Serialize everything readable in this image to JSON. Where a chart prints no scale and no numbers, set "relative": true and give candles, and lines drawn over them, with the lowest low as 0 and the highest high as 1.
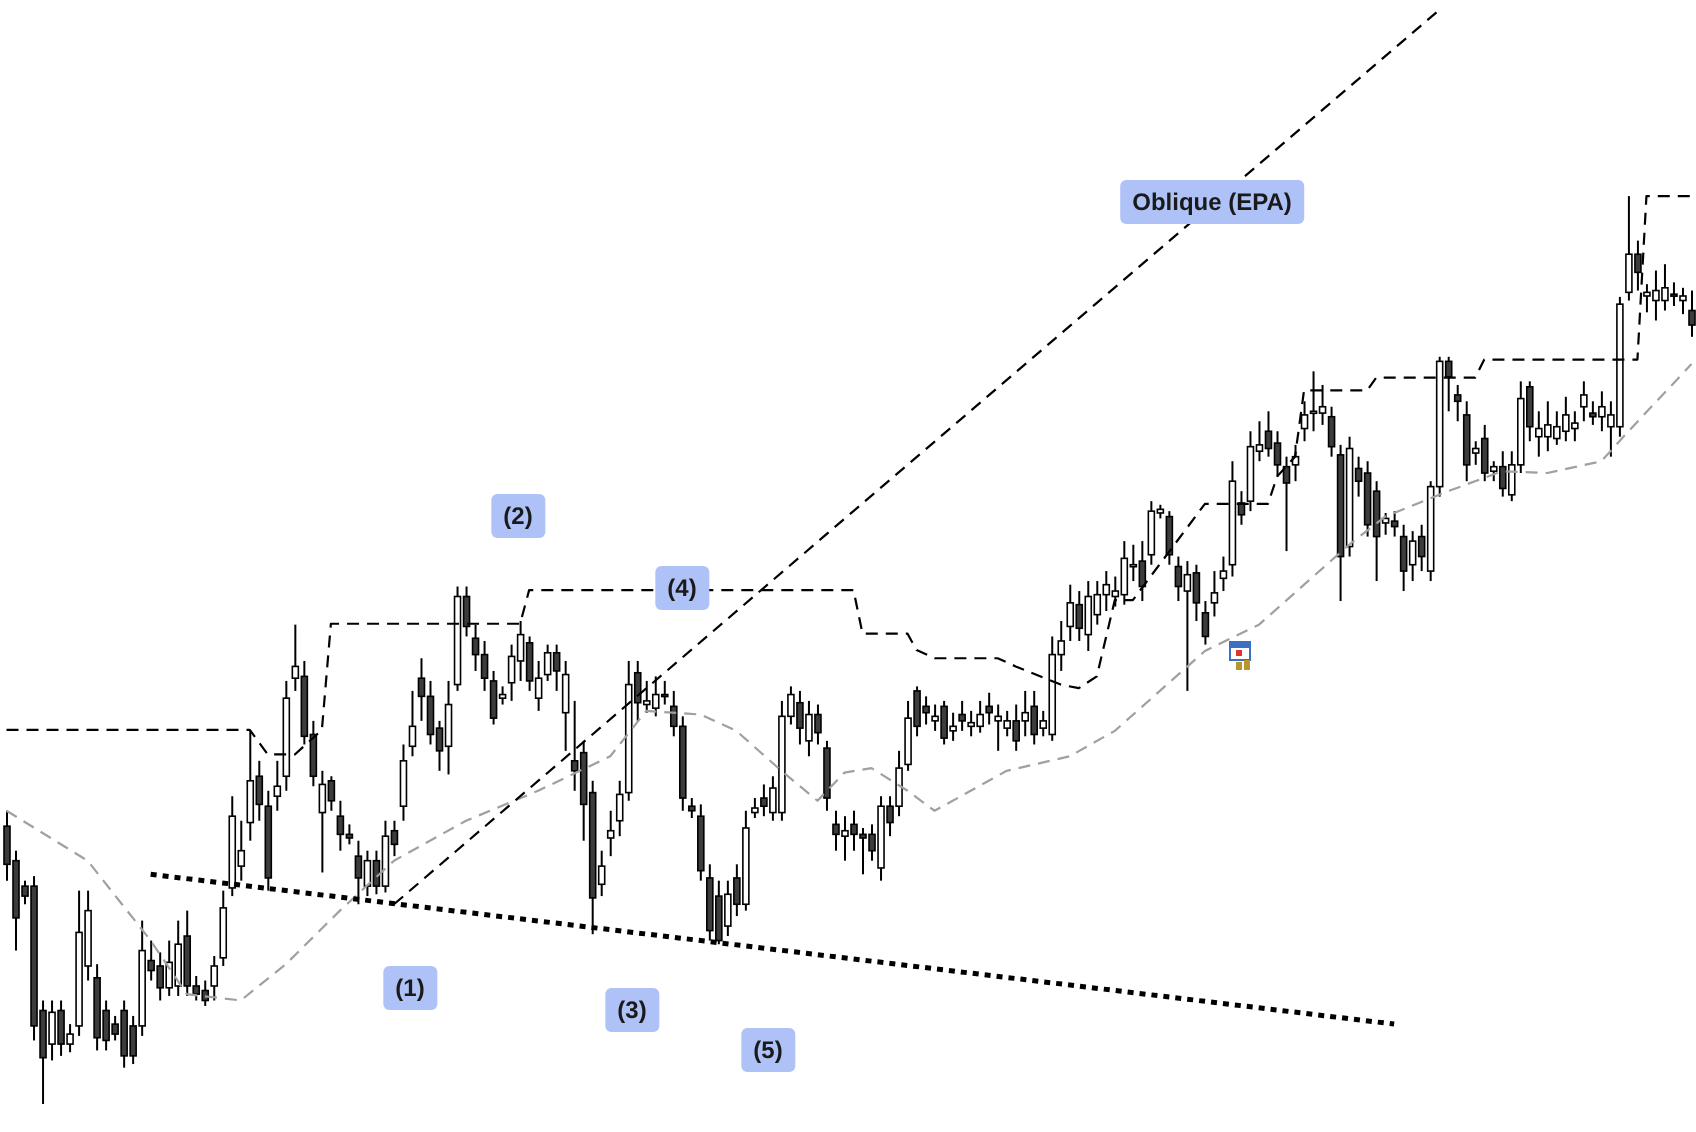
{
  "chart_data": {
    "type": "candlestick",
    "relative": true,
    "categories": [
      null,
      null,
      null,
      null,
      null,
      null,
      null,
      null,
      null,
      null,
      null,
      null,
      null,
      null,
      null,
      null,
      null,
      null,
      null,
      null,
      null,
      null,
      null,
      null,
      null,
      null,
      null,
      null,
      null,
      null,
      null,
      null,
      null,
      null,
      null,
      null,
      null,
      null,
      null,
      null,
      null,
      null,
      null,
      null,
      null,
      null,
      null,
      null,
      null,
      null,
      null,
      null,
      null,
      null,
      null,
      null,
      null,
      null,
      null,
      null,
      null,
      null,
      null,
      null,
      null,
      null,
      null,
      null,
      null,
      null,
      null,
      null,
      null,
      null,
      null,
      null,
      null,
      null,
      null,
      null,
      null,
      null,
      null,
      null,
      null,
      null,
      null,
      null,
      null,
      null,
      null,
      null,
      null,
      null,
      null,
      null,
      null,
      null,
      null,
      null,
      null,
      null,
      null,
      null,
      null,
      null,
      null,
      null,
      null,
      null,
      null,
      null,
      null,
      null,
      null,
      null,
      null,
      null,
      null,
      null,
      null,
      null,
      null,
      null,
      null,
      null,
      null,
      null,
      null,
      null,
      null,
      null,
      null,
      null,
      null,
      null,
      null,
      null,
      null,
      null,
      null,
      null,
      null,
      null,
      null,
      null,
      null,
      null,
      null,
      null,
      null,
      null,
      null,
      null,
      null,
      null,
      null,
      null,
      null,
      null,
      null,
      null,
      null,
      null,
      null,
      null,
      null,
      null,
      null,
      null,
      null,
      null,
      null,
      null,
      null,
      null,
      null,
      null,
      null,
      null,
      null,
      null,
      null,
      null,
      null,
      null,
      null,
      null
    ],
    "ohlc": [
      [
        0.306,
        0.323,
        0.246,
        0.264
      ],
      [
        0.268,
        0.279,
        0.169,
        0.205
      ],
      [
        0.24,
        0.246,
        0.22,
        0.229
      ],
      [
        0.24,
        0.251,
        0.07,
        0.086
      ],
      [
        0.103,
        0.114,
        0,
        0.051
      ],
      [
        0.066,
        0.114,
        0.048,
        0.101
      ],
      [
        0.103,
        0.114,
        0.053,
        0.066
      ],
      [
        0.066,
        0.088,
        0.057,
        0.077
      ],
      [
        0.086,
        0.235,
        0.075,
        0.189
      ],
      [
        0.152,
        0.235,
        0.136,
        0.213
      ],
      [
        0.139,
        0.154,
        0.059,
        0.073
      ],
      [
        0.103,
        0.114,
        0.059,
        0.07
      ],
      [
        0.088,
        0.097,
        0.07,
        0.077
      ],
      [
        0.103,
        0.114,
        0.04,
        0.053
      ],
      [
        0.086,
        0.097,
        0.044,
        0.053
      ],
      [
        0.086,
        0.202,
        0.075,
        0.169
      ],
      [
        0.158,
        0.18,
        0.136,
        0.147
      ],
      [
        0.152,
        0.167,
        0.114,
        0.128
      ],
      [
        0.128,
        0.18,
        0.119,
        0.156
      ],
      [
        0.13,
        0.202,
        0.119,
        0.176
      ],
      [
        0.185,
        0.213,
        0.119,
        0.13
      ],
      [
        0.13,
        0.141,
        0.114,
        0.121
      ],
      [
        0.125,
        0.136,
        0.108,
        0.114
      ],
      [
        0.13,
        0.163,
        0.114,
        0.152
      ],
      [
        0.161,
        0.235,
        0.152,
        0.216
      ],
      [
        0.238,
        0.339,
        0.229,
        0.317
      ],
      [
        0.262,
        0.312,
        0.246,
        0.279
      ],
      [
        0.31,
        0.411,
        0.29,
        0.356
      ],
      [
        0.361,
        0.378,
        0.312,
        0.33
      ],
      [
        0.328,
        0.345,
        0.235,
        0.249
      ],
      [
        0.339,
        0.378,
        0.323,
        0.35
      ],
      [
        0.361,
        0.466,
        0.345,
        0.447
      ],
      [
        0.469,
        0.528,
        0.455,
        0.482
      ],
      [
        0.471,
        0.488,
        0.396,
        0.405
      ],
      [
        0.407,
        0.422,
        0.35,
        0.361
      ],
      [
        0.321,
        0.367,
        0.255,
        0.352
      ],
      [
        0.356,
        0.361,
        0.323,
        0.334
      ],
      [
        0.317,
        0.334,
        0.279,
        0.297
      ],
      [
        0.297,
        0.308,
        0.286,
        0.293
      ],
      [
        0.273,
        0.29,
        0.22,
        0.249
      ],
      [
        0.24,
        0.279,
        0.229,
        0.268
      ],
      [
        0.268,
        0.279,
        0.231,
        0.24
      ],
      [
        0.24,
        0.312,
        0.233,
        0.295
      ],
      [
        0.301,
        0.312,
        0.273,
        0.286
      ],
      [
        0.328,
        0.396,
        0.312,
        0.378
      ],
      [
        0.394,
        0.455,
        0.383,
        0.416
      ],
      [
        0.469,
        0.491,
        0.422,
        0.449
      ],
      [
        0.449,
        0.466,
        0.396,
        0.407
      ],
      [
        0.414,
        0.422,
        0.367,
        0.389
      ],
      [
        0.394,
        0.466,
        0.363,
        0.44
      ],
      [
        0.462,
        0.57,
        0.455,
        0.559
      ],
      [
        0.559,
        0.57,
        0.515,
        0.526
      ],
      [
        0.513,
        0.528,
        0.477,
        0.495
      ],
      [
        0.495,
        0.51,
        0.455,
        0.469
      ],
      [
        0.466,
        0.477,
        0.418,
        0.425
      ],
      [
        0.447,
        0.46,
        0.44,
        0.451
      ],
      [
        0.464,
        0.506,
        0.444,
        0.493
      ],
      [
        0.488,
        0.532,
        0.466,
        0.517
      ],
      [
        0.508,
        0.515,
        0.455,
        0.466
      ],
      [
        0.447,
        0.488,
        0.433,
        0.469
      ],
      [
        0.473,
        0.506,
        0.466,
        0.497
      ],
      [
        0.497,
        0.506,
        0.455,
        0.477
      ],
      [
        0.431,
        0.488,
        0.389,
        0.473
      ],
      [
        0.378,
        0.444,
        0.345,
        0.367
      ],
      [
        0.387,
        0.4,
        0.29,
        0.33
      ],
      [
        0.343,
        0.356,
        0.187,
        0.227
      ],
      [
        0.242,
        0.279,
        0.229,
        0.262
      ],
      [
        0.293,
        0.323,
        0.273,
        0.301
      ],
      [
        0.312,
        0.356,
        0.295,
        0.341
      ],
      [
        0.343,
        0.488,
        0.334,
        0.462
      ],
      [
        0.475,
        0.488,
        0.422,
        0.442
      ],
      [
        0.44,
        0.466,
        0.431,
        0.444
      ],
      [
        0.436,
        0.471,
        0.427,
        0.451
      ],
      [
        0.451,
        0.466,
        0.44,
        0.449
      ],
      [
        0.438,
        0.455,
        0.405,
        0.416
      ],
      [
        0.416,
        0.427,
        0.323,
        0.337
      ],
      [
        0.328,
        0.337,
        0.315,
        0.323
      ],
      [
        0.317,
        0.33,
        0.246,
        0.257
      ],
      [
        0.249,
        0.264,
        0.18,
        0.191
      ],
      [
        0.229,
        0.246,
        0.176,
        0.18
      ],
      [
        0.196,
        0.246,
        0.185,
        0.231
      ],
      [
        0.249,
        0.264,
        0.207,
        0.22
      ],
      [
        0.22,
        0.323,
        0.213,
        0.304
      ],
      [
        0.321,
        0.337,
        0.315,
        0.326
      ],
      [
        0.337,
        0.352,
        0.317,
        0.328
      ],
      [
        0.321,
        0.361,
        0.312,
        0.348
      ],
      [
        0.321,
        0.444,
        0.312,
        0.427
      ],
      [
        0.427,
        0.46,
        0.418,
        0.451
      ],
      [
        0.442,
        0.455,
        0.396,
        0.414
      ],
      [
        0.4,
        0.444,
        0.383,
        0.429
      ],
      [
        0.429,
        0.44,
        0.396,
        0.409
      ],
      [
        0.392,
        0.4,
        0.323,
        0.337
      ],
      [
        0.308,
        0.323,
        0.279,
        0.297
      ],
      [
        0.295,
        0.317,
        0.268,
        0.301
      ],
      [
        0.308,
        0.323,
        0.279,
        0.297
      ],
      [
        0.297,
        0.304,
        0.253,
        0.293
      ],
      [
        0.297,
        0.308,
        0.268,
        0.279
      ],
      [
        0.26,
        0.339,
        0.246,
        0.328
      ],
      [
        0.328,
        0.339,
        0.295,
        0.31
      ],
      [
        0.328,
        0.389,
        0.317,
        0.37
      ],
      [
        0.374,
        0.444,
        0.367,
        0.425
      ],
      [
        0.455,
        0.46,
        0.405,
        0.416
      ],
      [
        0.438,
        0.449,
        0.418,
        0.431
      ],
      [
        0.422,
        0.44,
        0.411,
        0.427
      ],
      [
        0.438,
        0.444,
        0.396,
        0.403
      ],
      [
        0.411,
        0.431,
        0.4,
        0.416
      ],
      [
        0.429,
        0.444,
        0.411,
        0.422
      ],
      [
        0.416,
        0.433,
        0.405,
        0.42
      ],
      [
        0.416,
        0.444,
        0.409,
        0.429
      ],
      [
        0.438,
        0.453,
        0.418,
        0.431
      ],
      [
        0.422,
        0.44,
        0.389,
        0.427
      ],
      [
        0.414,
        0.433,
        0.405,
        0.422
      ],
      [
        0.422,
        0.44,
        0.389,
        0.4
      ],
      [
        0.422,
        0.455,
        0.405,
        0.431
      ],
      [
        0.438,
        0.455,
        0.396,
        0.407
      ],
      [
        0.414,
        0.433,
        0.405,
        0.422
      ],
      [
        0.407,
        0.515,
        0.4,
        0.495
      ],
      [
        0.495,
        0.532,
        0.477,
        0.51
      ],
      [
        0.526,
        0.572,
        0.51,
        0.552
      ],
      [
        0.55,
        0.565,
        0.51,
        0.524
      ],
      [
        0.517,
        0.576,
        0.499,
        0.559
      ],
      [
        0.539,
        0.576,
        0.528,
        0.561
      ],
      [
        0.561,
        0.587,
        0.543,
        0.572
      ],
      [
        0.559,
        0.581,
        0.548,
        0.565
      ],
      [
        0.561,
        0.62,
        0.55,
        0.601
      ],
      [
        0.592,
        0.616,
        0.576,
        0.594
      ],
      [
        0.598,
        0.62,
        0.554,
        0.57
      ],
      [
        0.605,
        0.664,
        0.594,
        0.653
      ],
      [
        0.651,
        0.66,
        0.645,
        0.655
      ],
      [
        0.647,
        0.653,
        0.594,
        0.605
      ],
      [
        0.592,
        0.603,
        0.554,
        0.57
      ],
      [
        0.565,
        0.598,
        0.455,
        0.583
      ],
      [
        0.585,
        0.594,
        0.532,
        0.552
      ],
      [
        0.541,
        0.554,
        0.506,
        0.515
      ],
      [
        0.552,
        0.587,
        0.537,
        0.563
      ],
      [
        0.579,
        0.603,
        0.565,
        0.587
      ],
      [
        0.594,
        0.708,
        0.581,
        0.686
      ],
      [
        0.662,
        0.675,
        0.638,
        0.649
      ],
      [
        0.664,
        0.741,
        0.653,
        0.724
      ],
      [
        0.719,
        0.752,
        0.708,
        0.726
      ],
      [
        0.741,
        0.763,
        0.713,
        0.722
      ],
      [
        0.728,
        0.741,
        0.691,
        0.704
      ],
      [
        0.702,
        0.713,
        0.609,
        0.684
      ],
      [
        0.704,
        0.726,
        0.686,
        0.713
      ],
      [
        0.744,
        0.774,
        0.73,
        0.759
      ],
      [
        0.761,
        0.807,
        0.741,
        0.763
      ],
      [
        0.761,
        0.792,
        0.748,
        0.768
      ],
      [
        0.757,
        0.768,
        0.713,
        0.724
      ],
      [
        0.715,
        0.726,
        0.554,
        0.603
      ],
      [
        0.614,
        0.735,
        0.603,
        0.722
      ],
      [
        0.7,
        0.713,
        0.669,
        0.686
      ],
      [
        0.695,
        0.708,
        0.625,
        0.638
      ],
      [
        0.675,
        0.686,
        0.576,
        0.625
      ],
      [
        0.64,
        0.651,
        0.627,
        0.645
      ],
      [
        0.642,
        0.653,
        0.625,
        0.636
      ],
      [
        0.625,
        0.638,
        0.565,
        0.587
      ],
      [
        0.594,
        0.631,
        0.576,
        0.62
      ],
      [
        0.625,
        0.638,
        0.587,
        0.603
      ],
      [
        0.587,
        0.686,
        0.576,
        0.68
      ],
      [
        0.68,
        0.823,
        0.669,
        0.818
      ],
      [
        0.818,
        0.823,
        0.763,
        0.801
      ],
      [
        0.781,
        0.792,
        0.752,
        0.774
      ],
      [
        0.759,
        0.774,
        0.686,
        0.704
      ],
      [
        0.717,
        0.73,
        0.704,
        0.722
      ],
      [
        0.733,
        0.748,
        0.686,
        0.695
      ],
      [
        0.697,
        0.708,
        0.686,
        0.702
      ],
      [
        0.702,
        0.719,
        0.669,
        0.678
      ],
      [
        0.671,
        0.719,
        0.664,
        0.704
      ],
      [
        0.704,
        0.796,
        0.695,
        0.777
      ],
      [
        0.79,
        0.796,
        0.73,
        0.746
      ],
      [
        0.735,
        0.763,
        0.713,
        0.744
      ],
      [
        0.735,
        0.774,
        0.719,
        0.748
      ],
      [
        0.733,
        0.763,
        0.726,
        0.746
      ],
      [
        0.741,
        0.779,
        0.73,
        0.759
      ],
      [
        0.744,
        0.763,
        0.73,
        0.75
      ],
      [
        0.768,
        0.796,
        0.752,
        0.781
      ],
      [
        0.761,
        0.774,
        0.748,
        0.757
      ],
      [
        0.757,
        0.785,
        0.741,
        0.768
      ],
      [
        0.746,
        0.774,
        0.713,
        0.759
      ],
      [
        0.746,
        0.889,
        0.735,
        0.881
      ],
      [
        0.894,
        1,
        0.885,
        0.936
      ],
      [
        0.936,
        0.951,
        0.896,
        0.916
      ],
      [
        0.89,
        0.903,
        0.872,
        0.894
      ],
      [
        0.885,
        0.918,
        0.863,
        0.896
      ],
      [
        0.885,
        0.925,
        0.874,
        0.899
      ],
      [
        0.892,
        0.905,
        0.879,
        0.89
      ],
      [
        0.885,
        0.899,
        0.87,
        0.89
      ],
      [
        0.874,
        0.896,
        0.845,
        0.858
      ]
    ],
    "series": [
      {
        "type": "line",
        "color": "#000000",
        "line_style": "dashed",
        "values": [
          0.412,
          null,
          null,
          null,
          null,
          null,
          null,
          null,
          null,
          null,
          null,
          null,
          null,
          null,
          null,
          null,
          null,
          null,
          null,
          null,
          null,
          null,
          null,
          null,
          null,
          null,
          null,
          0.412,
          null,
          0.385,
          null,
          null,
          0.385,
          null,
          null,
          0.412,
          0.529,
          null,
          null,
          null,
          null,
          null,
          null,
          null,
          null,
          null,
          null,
          null,
          null,
          null,
          null,
          null,
          null,
          null,
          null,
          null,
          null,
          0.529,
          0.566,
          null,
          null,
          null,
          null,
          null,
          null,
          null,
          null,
          null,
          null,
          null,
          null,
          null,
          null,
          null,
          null,
          null,
          null,
          null,
          null,
          null,
          null,
          null,
          null,
          null,
          null,
          null,
          null,
          null,
          null,
          null,
          null,
          null,
          null,
          null,
          0.566,
          0.518,
          null,
          null,
          null,
          null,
          0.518,
          0.5,
          null,
          0.491,
          null,
          null,
          null,
          null,
          null,
          null,
          0.491,
          null,
          0.482,
          null,
          null,
          null,
          null,
          0.462,
          null,
          0.458,
          null,
          0.471,
          null,
          0.555,
          null,
          0.555,
          null,
          null,
          null,
          null,
          null,
          null,
          null,
          0.661,
          null,
          null,
          null,
          null,
          null,
          null,
          0.661,
          0.691,
          null,
          0.713,
          0.786,
          null,
          null,
          null,
          null,
          null,
          null,
          0.786,
          0.8,
          null,
          null,
          null,
          null,
          null,
          null,
          null,
          null,
          null,
          null,
          0.8,
          0.82,
          null,
          null,
          null,
          null,
          null,
          null,
          null,
          null,
          null,
          null,
          null,
          null,
          null,
          null,
          null,
          null,
          0.82,
          1,
          null,
          null,
          null,
          null,
          1
        ]
      },
      {
        "type": "line",
        "color": "#a0a0a0",
        "line_style": "dashed",
        "values": [
          0.323,
          null,
          null,
          null,
          null,
          null,
          null,
          null,
          null,
          0.268,
          null,
          null,
          null,
          null,
          null,
          null,
          0.18,
          null,
          null,
          null,
          0.121,
          null,
          null,
          null,
          null,
          null,
          0.114,
          null,
          null,
          null,
          null,
          0.154,
          null,
          null,
          null,
          null,
          null,
          0.213,
          null,
          null,
          null,
          null,
          null,
          0.268,
          null,
          null,
          null,
          null,
          null,
          null,
          null,
          0.312,
          null,
          null,
          null,
          null,
          null,
          null,
          null,
          0.345,
          null,
          null,
          null,
          null,
          null,
          null,
          null,
          0.383,
          null,
          null,
          null,
          0.433,
          null,
          null,
          null,
          null,
          null,
          0.429,
          null,
          null,
          null,
          0.411,
          null,
          null,
          null,
          null,
          0.367,
          null,
          null,
          null,
          0.334,
          null,
          null,
          0.365,
          null,
          null,
          0.37,
          null,
          null,
          null,
          0.345,
          null,
          null,
          0.323,
          null,
          null,
          null,
          0.345,
          null,
          null,
          null,
          0.367,
          null,
          null,
          null,
          null,
          null,
          null,
          0.383,
          null,
          null,
          null,
          null,
          0.411,
          null,
          null,
          null,
          null,
          0.455,
          null,
          null,
          null,
          null,
          0.499,
          null,
          null,
          null,
          null,
          null,
          0.528,
          null,
          null,
          null,
          null,
          0.572,
          null,
          null,
          null,
          null,
          0.616,
          null,
          null,
          null,
          0.647,
          null,
          null,
          null,
          null,
          null,
          null,
          0.675,
          null,
          null,
          null,
          null,
          null,
          0.697,
          null,
          null,
          null,
          null,
          0.695,
          null,
          null,
          null,
          null,
          null,
          0.708,
          null,
          null,
          0.741,
          null,
          null,
          null,
          null,
          null,
          null,
          0.815
        ]
      },
      {
        "type": "line",
        "color": "#000000",
        "line_style": "dashed",
        "values": [
          null,
          null,
          null,
          null,
          null,
          null,
          null,
          null,
          null,
          null,
          null,
          null,
          null,
          null,
          null,
          null,
          null,
          null,
          null,
          null,
          null,
          null,
          null,
          null,
          null,
          null,
          null,
          null,
          null,
          null,
          null,
          null,
          null,
          null,
          null,
          null,
          null,
          null,
          null,
          null,
          null,
          null,
          null,
          0.22,
          null,
          null,
          null,
          null,
          null,
          null,
          null,
          null,
          null,
          null,
          null,
          null,
          null,
          null,
          null,
          null,
          null,
          null,
          null,
          null,
          null,
          null,
          null,
          null,
          null,
          null,
          null,
          null,
          null,
          null,
          null,
          null,
          null,
          null,
          null,
          null,
          null,
          null,
          null,
          null,
          null,
          null,
          null,
          null,
          null,
          null,
          null,
          null,
          null,
          null,
          null,
          null,
          null,
          null,
          null,
          null,
          null,
          null,
          null,
          null,
          null,
          null,
          null,
          null,
          null,
          null,
          null,
          null,
          null,
          null,
          null,
          null,
          null,
          null,
          null,
          null,
          null,
          null,
          null,
          null,
          null,
          null,
          null,
          null,
          null,
          null,
          null,
          null,
          null,
          null,
          null,
          null,
          null,
          null,
          null,
          null,
          null,
          null,
          null,
          null,
          null,
          null,
          null,
          null,
          null,
          null,
          null,
          null,
          null,
          null,
          null,
          null,
          null,
          null,
          null,
          1.205,
          null,
          null,
          null,
          null,
          null,
          null,
          null,
          null,
          null,
          null,
          null,
          null,
          null,
          null,
          null,
          null,
          null,
          null,
          null,
          null,
          null,
          null,
          null,
          null,
          null,
          null,
          null,
          null
        ]
      },
      {
        "type": "line",
        "color": "#000000",
        "line_style": "dotted",
        "values": [
          null,
          null,
          null,
          null,
          null,
          null,
          null,
          null,
          null,
          null,
          null,
          null,
          null,
          null,
          null,
          null,
          0.253,
          null,
          null,
          null,
          null,
          null,
          null,
          null,
          null,
          null,
          null,
          null,
          null,
          null,
          null,
          null,
          null,
          null,
          null,
          null,
          null,
          null,
          null,
          null,
          null,
          null,
          null,
          null,
          null,
          null,
          null,
          null,
          null,
          null,
          null,
          null,
          null,
          null,
          null,
          null,
          null,
          null,
          null,
          null,
          null,
          null,
          null,
          null,
          null,
          null,
          null,
          null,
          null,
          null,
          null,
          null,
          null,
          null,
          null,
          null,
          null,
          null,
          null,
          null,
          null,
          null,
          null,
          null,
          null,
          null,
          null,
          null,
          null,
          null,
          null,
          null,
          null,
          null,
          null,
          null,
          null,
          null,
          null,
          null,
          null,
          null,
          null,
          null,
          null,
          null,
          null,
          null,
          null,
          null,
          null,
          null,
          null,
          null,
          null,
          null,
          null,
          null,
          null,
          null,
          null,
          null,
          null,
          null,
          null,
          null,
          null,
          null,
          null,
          null,
          null,
          null,
          null,
          null,
          null,
          null,
          null,
          null,
          null,
          null,
          null,
          null,
          null,
          null,
          null,
          null,
          null,
          null,
          null,
          null,
          null,
          null,
          null,
          null,
          0.088,
          null,
          null,
          null,
          null,
          null,
          null,
          null,
          null,
          null,
          null,
          null,
          null,
          null,
          null,
          null,
          null,
          null,
          null,
          null,
          null,
          null,
          null,
          null,
          null,
          null,
          null,
          null,
          null,
          null,
          null,
          null,
          null,
          null
        ]
      }
    ],
    "annotations": [
      "(1)",
      "(2)",
      "(3)",
      "(4)",
      "(5)",
      "Oblique (EPA)"
    ]
  }
}
